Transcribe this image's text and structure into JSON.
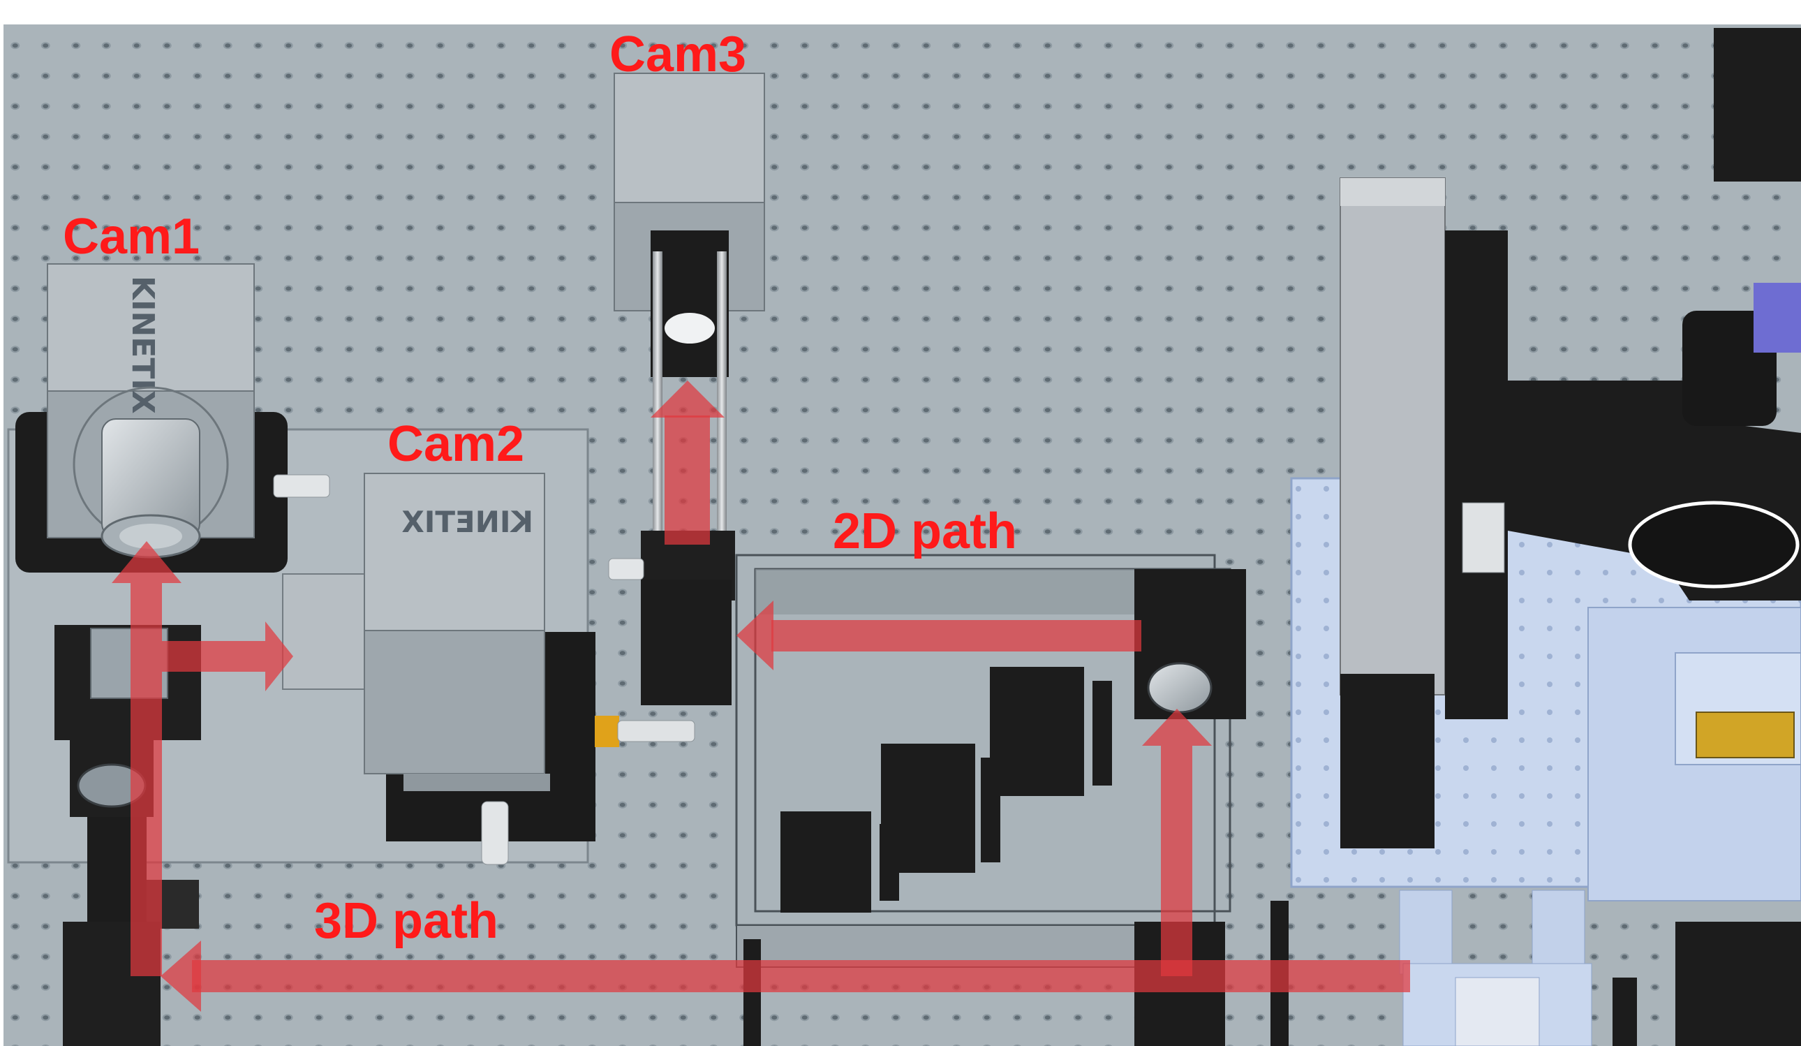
{
  "labels": {
    "cam1": "Cam1",
    "cam2": "Cam2",
    "cam3": "Cam3",
    "path_2d": "2D path",
    "path_3d": "3D path"
  },
  "device_text": {
    "cam1_brand": "KINETIX",
    "cam2_brand": "KINETIX"
  },
  "colors": {
    "label": "#ff1a1a",
    "beam": "#e0393e",
    "table": "#aab4ba",
    "hole": "#7f8b93",
    "camera_light": "#b6bdc2",
    "camera_mid": "#9aa3aa",
    "mount_black": "#1c1c1c",
    "stage_blue": "#c7d6ef"
  }
}
